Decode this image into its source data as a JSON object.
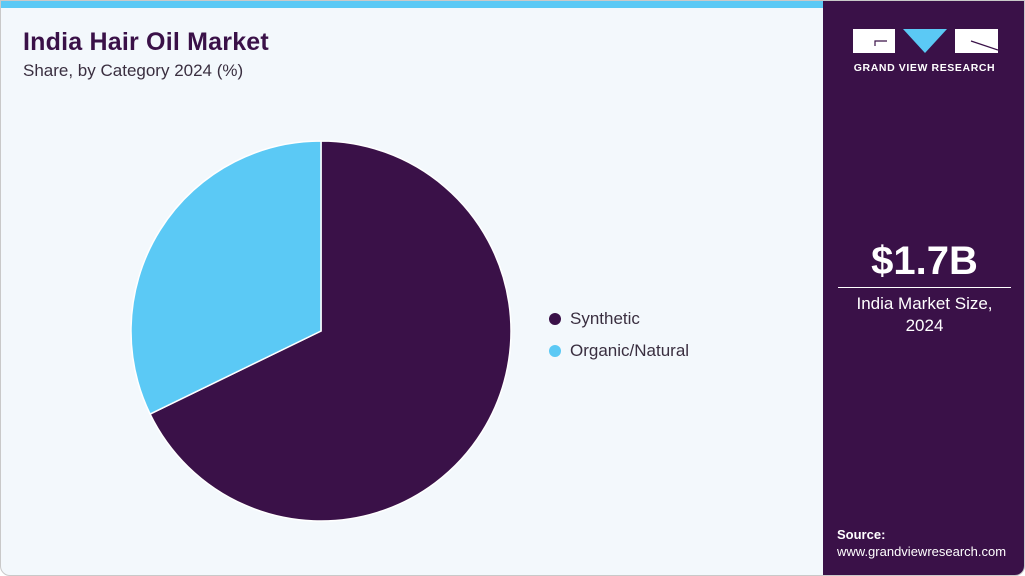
{
  "header": {
    "title": "India Hair Oil Market",
    "subtitle": "Share, by Category 2024 (%)"
  },
  "legend": {
    "items": [
      {
        "label": "Synthetic",
        "color": "#3a1148"
      },
      {
        "label": "Organic/Natural",
        "color": "#5bc9f5"
      }
    ]
  },
  "sidebar": {
    "logo_text": "GRAND VIEW RESEARCH",
    "stat_value": "$1.7B",
    "stat_label_line1": "India Market Size,",
    "stat_label_line2": "2024",
    "source_label": "Source:",
    "source_url": "www.grandviewresearch.com"
  },
  "colors": {
    "accent": "#5bc9f5",
    "brand": "#3a1148",
    "background": "#f3f8fc"
  },
  "chart_data": {
    "type": "pie",
    "title": "India Hair Oil Market",
    "subtitle": "Share, by Category 2024 (%)",
    "categories": [
      "Synthetic",
      "Organic/Natural"
    ],
    "values": [
      67.8,
      32.2
    ],
    "colors": [
      "#3a1148",
      "#5bc9f5"
    ],
    "start_angle": "12 o'clock, clockwise",
    "legend_position": "right"
  }
}
